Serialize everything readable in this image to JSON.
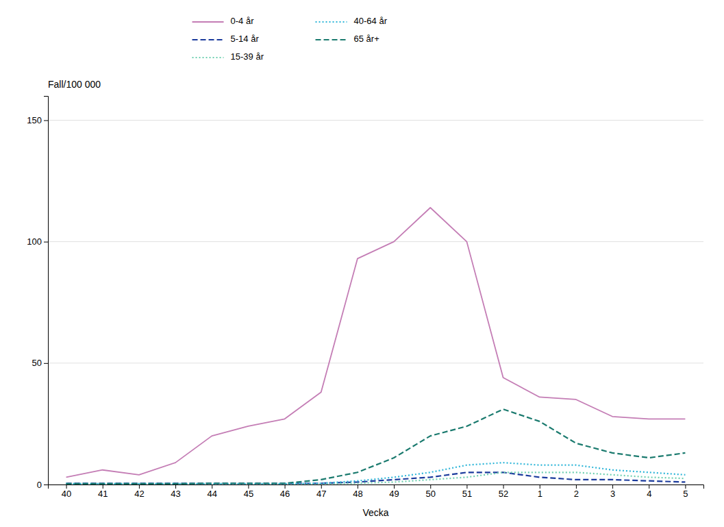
{
  "chart_data": {
    "type": "line",
    "x_label": "Vecka",
    "y_label": "Fall/100 000",
    "categories": [
      "40",
      "41",
      "42",
      "43",
      "44",
      "45",
      "46",
      "47",
      "48",
      "49",
      "50",
      "51",
      "52",
      "1",
      "2",
      "3",
      "4",
      "5"
    ],
    "series": [
      {
        "name": "0-4 år",
        "color": "#c47db5",
        "line_style": "solid",
        "values": [
          3,
          6,
          4,
          9,
          20,
          24,
          27,
          38,
          93,
          100,
          114,
          100,
          44,
          36,
          35,
          28,
          27,
          27
        ]
      },
      {
        "name": "5-14 år",
        "color": "#1a3a9c",
        "line_style": "dashed",
        "values": [
          0.5,
          0.5,
          0.5,
          0.5,
          0.5,
          0.5,
          0.5,
          0.5,
          1,
          2,
          3,
          5,
          5,
          3,
          2,
          2,
          1.5,
          1
        ]
      },
      {
        "name": "15-39 år",
        "color": "#6ecfb0",
        "line_style": "dotted",
        "values": [
          0.3,
          0.3,
          0.3,
          0.3,
          0.3,
          0.3,
          0.3,
          0.3,
          0.5,
          1,
          2,
          3,
          5,
          5,
          5,
          4,
          3,
          2.5
        ]
      },
      {
        "name": "40-64 år",
        "color": "#2db5d8",
        "line_style": "dotted",
        "values": [
          0.3,
          0.3,
          0.3,
          0.3,
          0.3,
          0.3,
          0.3,
          0.5,
          1.5,
          3,
          5,
          8,
          9,
          8,
          8,
          6,
          5,
          4
        ]
      },
      {
        "name": "65 år+",
        "color": "#1a7a6e",
        "line_style": "dashed",
        "values": [
          0.3,
          0.3,
          0.3,
          0.3,
          0.5,
          0.5,
          0.5,
          2,
          5,
          11,
          20,
          24,
          31,
          26,
          17,
          13,
          11,
          13
        ]
      }
    ],
    "ylim": [
      0,
      160
    ],
    "yticks": [
      0,
      50,
      100,
      150
    ],
    "grid": true,
    "legend": "top"
  }
}
